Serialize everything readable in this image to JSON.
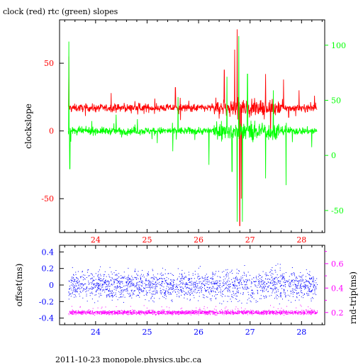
{
  "colors": {
    "clock": "#ff0000",
    "rtc": "#00ff00",
    "offset": "#0000ff",
    "rtt": "#ff00ff",
    "frame": "#000000"
  },
  "footer": "2011-10-23  monopole.physics.ubc.ca",
  "chart_data": [
    {
      "type": "line",
      "title": "clock (red) rtc (green) slopes",
      "xlabel": "",
      "ylabel": "clockslope",
      "y2label": "",
      "xlim": [
        23.3,
        28.45
      ],
      "ylim": [
        -75,
        82
      ],
      "y2lim": [
        -70,
        123
      ],
      "x_ticks": [
        24,
        25,
        26,
        27,
        28
      ],
      "y_ticks": [
        -50,
        0,
        50
      ],
      "y2_ticks": [
        -50,
        0,
        50,
        100
      ],
      "grid": false,
      "series": [
        {
          "axis": "left",
          "color": "red",
          "x_range": [
            23.47,
            28.3
          ],
          "baseline": 17,
          "noise": 2,
          "spikes": [
            {
              "x": 23.48,
              "y": 55
            },
            {
              "x": 24.3,
              "y": 28
            },
            {
              "x": 25.55,
              "y": 32
            },
            {
              "x": 25.65,
              "y": 8
            },
            {
              "x": 26.5,
              "y": 45
            },
            {
              "x": 26.7,
              "y": 60
            },
            {
              "x": 26.75,
              "y": 75
            },
            {
              "x": 26.8,
              "y": -70
            },
            {
              "x": 26.83,
              "y": -50
            },
            {
              "x": 27.3,
              "y": 42
            },
            {
              "x": 27.4,
              "y": -5
            },
            {
              "x": 27.65,
              "y": 38
            },
            {
              "x": 27.75,
              "y": 10
            },
            {
              "x": 27.95,
              "y": 30
            },
            {
              "x": 28.25,
              "y": 26
            }
          ]
        },
        {
          "axis": "left",
          "color": "green",
          "x_range": [
            23.47,
            28.3
          ],
          "baseline": 0,
          "noise": 2,
          "spikes": [
            {
              "x": 23.48,
              "y": 66
            },
            {
              "x": 23.5,
              "y": -28
            },
            {
              "x": 24.4,
              "y": 12
            },
            {
              "x": 25.5,
              "y": -15
            },
            {
              "x": 25.6,
              "y": 25
            },
            {
              "x": 26.2,
              "y": -25
            },
            {
              "x": 26.55,
              "y": 40
            },
            {
              "x": 26.65,
              "y": -30
            },
            {
              "x": 26.75,
              "y": -67
            },
            {
              "x": 26.78,
              "y": 70
            },
            {
              "x": 26.85,
              "y": -67
            },
            {
              "x": 26.95,
              "y": 42
            },
            {
              "x": 27.3,
              "y": -35
            },
            {
              "x": 27.45,
              "y": 30
            },
            {
              "x": 27.7,
              "y": -40
            },
            {
              "x": 28.2,
              "y": -12
            }
          ]
        }
      ]
    },
    {
      "type": "scatter",
      "title": "",
      "xlabel": "",
      "ylabel": "offset(ms)",
      "y2label": "rnd-trip(ms)",
      "xlim": [
        23.3,
        28.45
      ],
      "ylim": [
        -0.48,
        0.48
      ],
      "y2lim": [
        0.1,
        0.75
      ],
      "x_ticks": [
        24,
        25,
        26,
        27,
        28
      ],
      "y_ticks": [
        -0.4,
        -0.2,
        0,
        0.2,
        0.4
      ],
      "y2_ticks": [
        0.2,
        0.4,
        0.6
      ],
      "y2_minor_ticks": [
        0.3,
        0.5,
        0.7
      ],
      "grid": false,
      "series": [
        {
          "axis": "left",
          "color": "blue",
          "x_range": [
            23.47,
            28.3
          ],
          "center": 0.0,
          "spread": 0.12
        },
        {
          "axis": "right",
          "color": "magenta",
          "x_range": [
            23.47,
            28.3
          ],
          "center": 0.2,
          "spread": 0.012
        }
      ]
    }
  ]
}
